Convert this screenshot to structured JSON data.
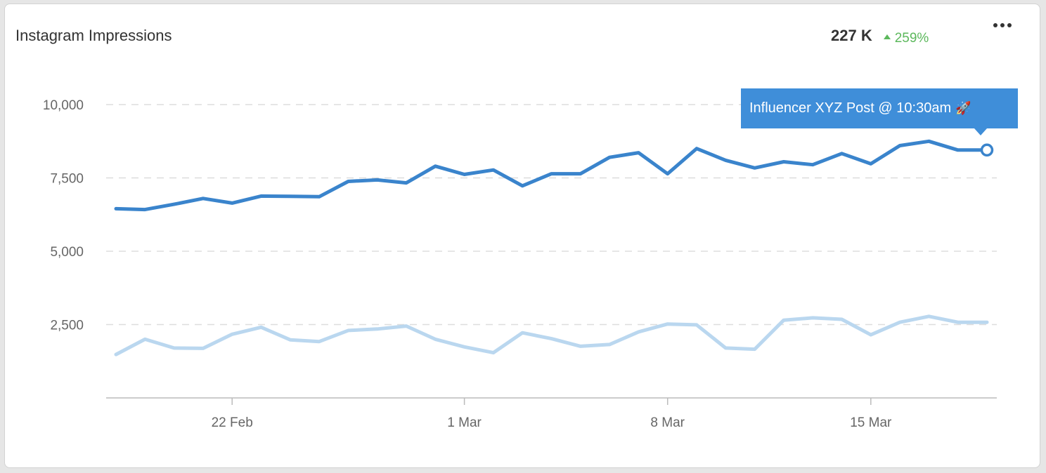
{
  "widget": {
    "title": "Instagram Impressions",
    "total_value": "227 K",
    "change": "259%",
    "change_icon": "up-triangle-icon",
    "menu_icon": "more-dots-icon"
  },
  "colors": {
    "primary_series": "#3a84cc",
    "secondary_series": "#bad7ef",
    "tooltip_bg": "#3f8ed9",
    "positive": "#5cb85c",
    "grid": "#dddddd"
  },
  "chart_data": {
    "type": "line",
    "x": [
      "2024-02-18",
      "2024-02-19",
      "2024-02-20",
      "2024-02-21",
      "2024-02-22",
      "2024-02-23",
      "2024-02-24",
      "2024-02-25",
      "2024-02-26",
      "2024-02-27",
      "2024-02-28",
      "2024-02-29",
      "2024-03-01",
      "2024-03-02",
      "2024-03-03",
      "2024-03-04",
      "2024-03-05",
      "2024-03-06",
      "2024-03-07",
      "2024-03-08",
      "2024-03-09",
      "2024-03-10",
      "2024-03-11",
      "2024-03-12",
      "2024-03-13",
      "2024-03-14",
      "2024-03-15",
      "2024-03-16",
      "2024-03-17",
      "2024-03-18",
      "2024-03-19"
    ],
    "x_tick_labels": [
      "22 Feb",
      "1 Mar",
      "8 Mar",
      "15 Mar"
    ],
    "x_tick_dates": [
      "2024-02-22",
      "2024-03-01",
      "2024-03-08",
      "2024-03-15"
    ],
    "ylim": [
      0,
      10000
    ],
    "y_ticks": [
      2500,
      5000,
      7500,
      10000
    ],
    "y_tick_labels": [
      "2,500",
      "5,000",
      "7,500",
      "10,000"
    ],
    "grid": "horizontal dashed",
    "legend": "none",
    "series": [
      {
        "values": [
          6450,
          6420,
          6600,
          6800,
          6640,
          6880,
          6870,
          6860,
          7380,
          7430,
          7330,
          7900,
          7620,
          7770,
          7230,
          7640,
          7640,
          8200,
          8360,
          7640,
          8500,
          8100,
          7840,
          8050,
          7950,
          8330,
          7980,
          8600,
          8750,
          8450,
          8450
        ]
      },
      {
        "values": [
          1480,
          2000,
          1700,
          1690,
          2170,
          2410,
          1980,
          1920,
          2300,
          2350,
          2450,
          2000,
          1740,
          1540,
          2220,
          2020,
          1760,
          1820,
          2250,
          2520,
          2490,
          1700,
          1660,
          2650,
          2730,
          2680,
          2150,
          2580,
          2780,
          2580,
          2580
        ]
      }
    ],
    "annotation": {
      "text": "Influencer XYZ Post @ 10:30am",
      "icon": "rocket-icon",
      "series_index": 0,
      "point_index": 30
    }
  }
}
